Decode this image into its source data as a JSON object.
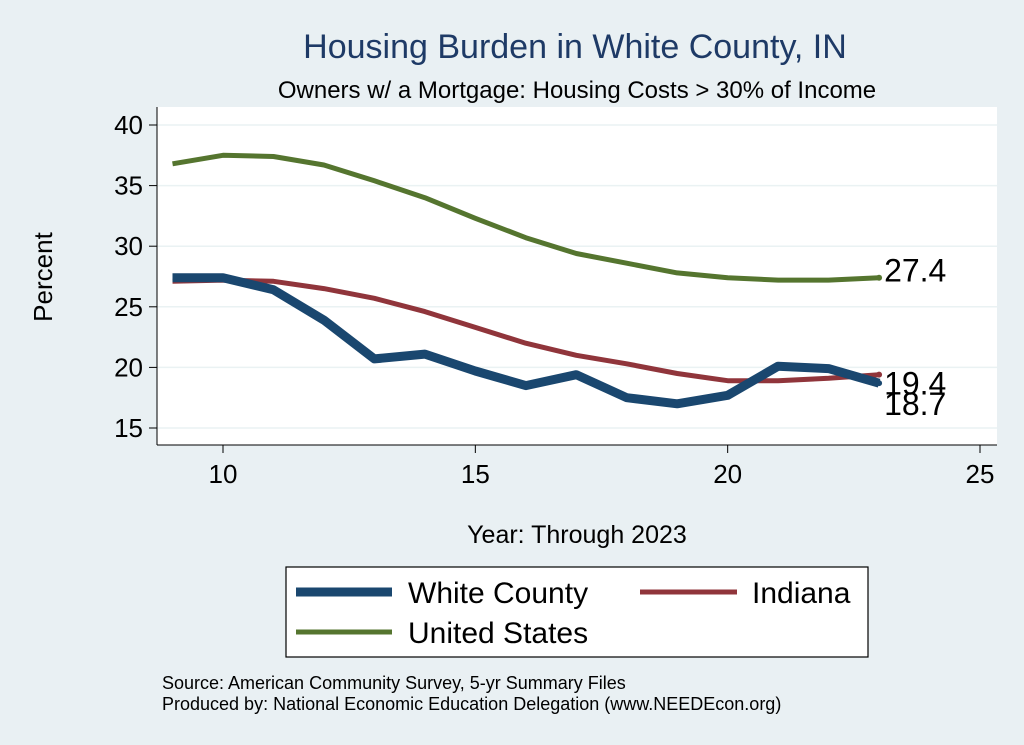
{
  "chart_data": {
    "type": "line",
    "title": "Housing Burden in White County, IN",
    "subtitle": "Owners w/ a Mortgage: Housing Costs > 30% of Income",
    "xlabel": "Year: Through 2023",
    "ylabel": "Percent",
    "xlim": [
      9,
      25
    ],
    "ylim": [
      15,
      41
    ],
    "x_ticks": [
      10,
      15,
      20,
      25
    ],
    "y_ticks": [
      15,
      20,
      25,
      30,
      35,
      40
    ],
    "grid": true,
    "legend_position": "bottom",
    "series": [
      {
        "name": "White County",
        "color": "#1a476f",
        "x": [
          9,
          10,
          11,
          12,
          13,
          14,
          15,
          16,
          17,
          18,
          19,
          20,
          21,
          22,
          23
        ],
        "values": [
          27.4,
          27.4,
          26.4,
          23.9,
          20.7,
          21.1,
          19.7,
          18.5,
          19.4,
          17.5,
          17.0,
          17.7,
          20.1,
          19.9,
          18.7
        ],
        "end_label": "18.7"
      },
      {
        "name": "Indiana",
        "color": "#90353b",
        "x": [
          9,
          10,
          11,
          12,
          13,
          14,
          15,
          16,
          17,
          18,
          19,
          20,
          21,
          22,
          23
        ],
        "values": [
          27.1,
          27.2,
          27.1,
          26.5,
          25.7,
          24.6,
          23.3,
          22.0,
          21.0,
          20.3,
          19.5,
          18.9,
          18.9,
          19.1,
          19.4
        ],
        "end_label": "19.4"
      },
      {
        "name": "United States",
        "color": "#55752f",
        "x": [
          9,
          10,
          11,
          12,
          13,
          14,
          15,
          16,
          17,
          18,
          19,
          20,
          21,
          22,
          23
        ],
        "values": [
          36.8,
          37.5,
          37.4,
          36.7,
          35.4,
          34.0,
          32.3,
          30.7,
          29.4,
          28.6,
          27.8,
          27.4,
          27.2,
          27.2,
          27.4
        ],
        "end_label": "27.4"
      }
    ]
  },
  "source_line": "Source: American Community Survey, 5-yr Summary Files",
  "produced_line": "Produced by: National Economic Education Delegation (www.NEEDEcon.org)"
}
